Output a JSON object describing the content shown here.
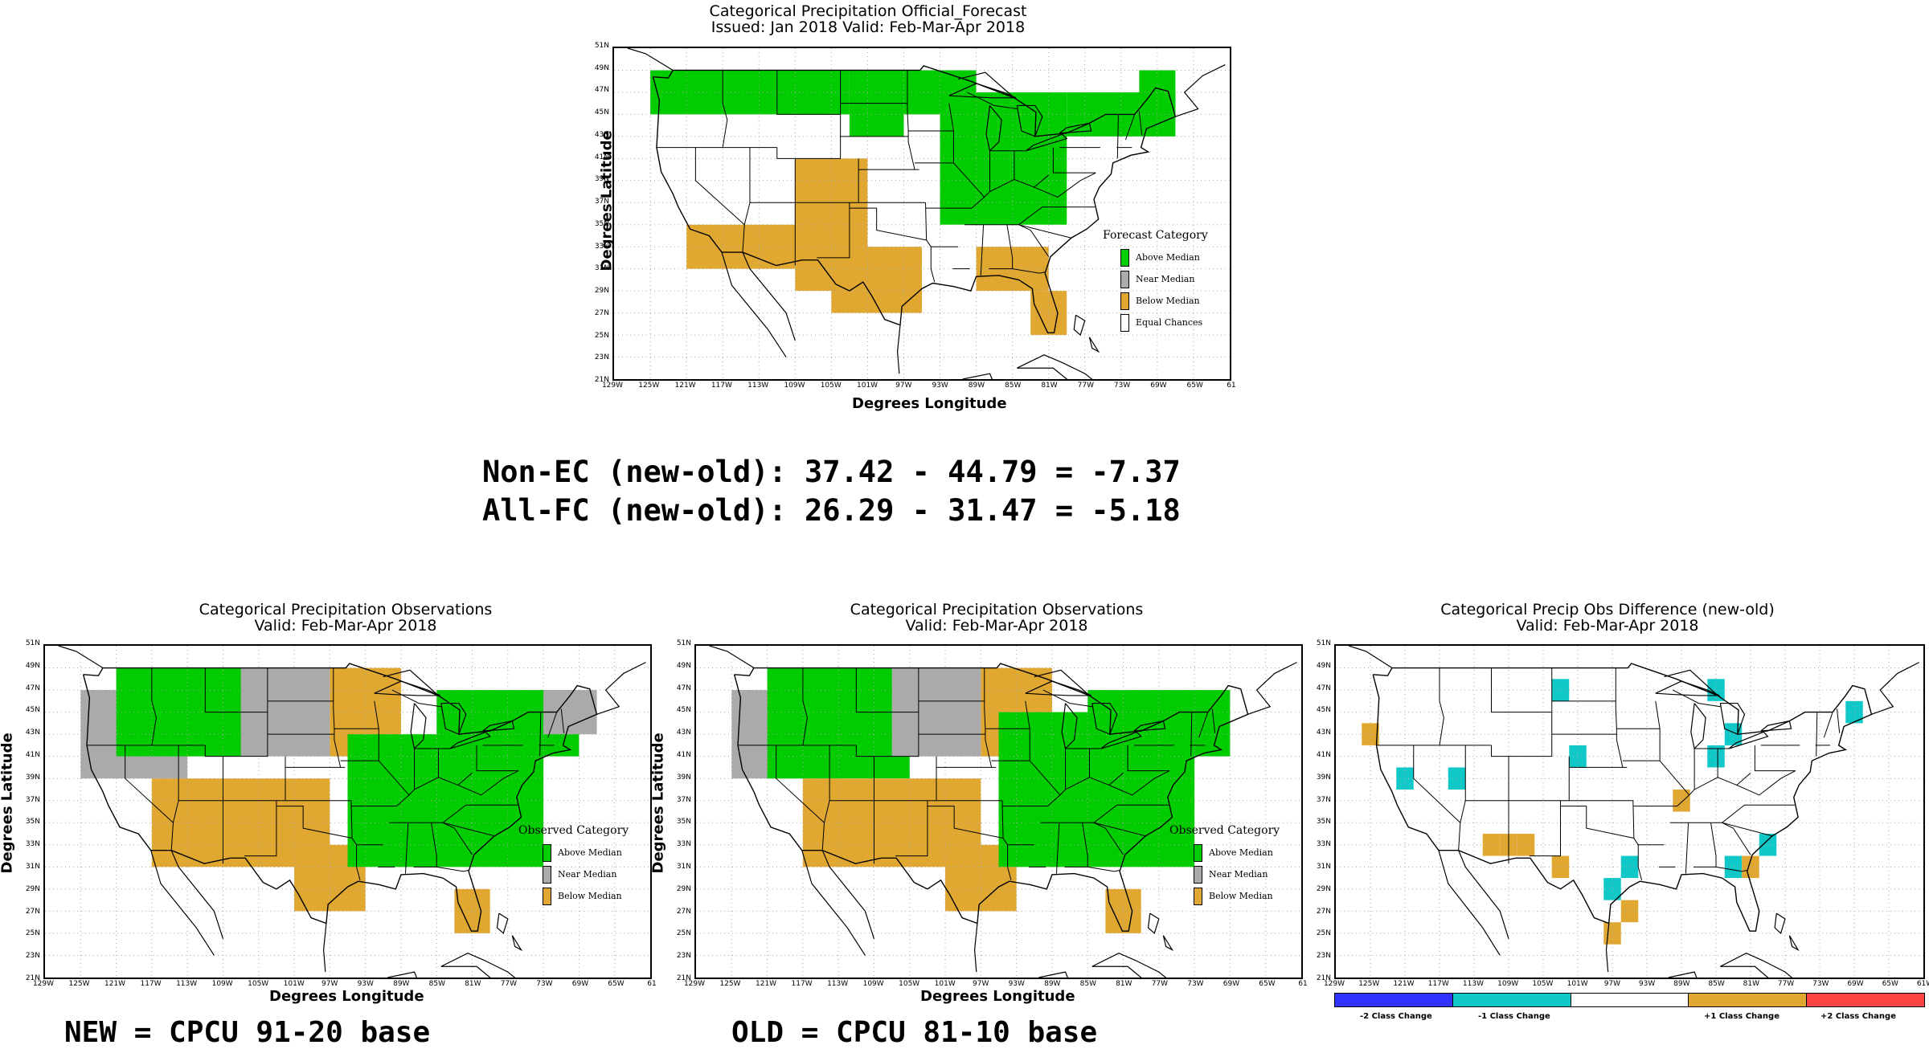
{
  "colors": {
    "above": "#00cc00",
    "near": "#aaaaaa",
    "below": "#e0a830",
    "ec": "#ffffff",
    "minus2": "#3333ff",
    "minus1": "#10c8c8",
    "plus1": "#e0a830",
    "plus2": "#ff4444"
  },
  "lat_ticks": [
    "51N",
    "49N",
    "47N",
    "45N",
    "43N",
    "41N",
    "39N",
    "37N",
    "35N",
    "33N",
    "31N",
    "29N",
    "27N",
    "25N",
    "23N",
    "21N"
  ],
  "lon_ticks": [
    "129W",
    "125W",
    "121W",
    "117W",
    "113W",
    "109W",
    "105W",
    "101W",
    "97W",
    "93W",
    "89W",
    "85W",
    "81W",
    "77W",
    "73W",
    "69W",
    "65W",
    "61"
  ],
  "lon_ticks_diff": [
    "129W",
    "125W",
    "121W",
    "117W",
    "113W",
    "109W",
    "105W",
    "101W",
    "97W",
    "93W",
    "89W",
    "85W",
    "81W",
    "77W",
    "73W",
    "69W",
    "65W",
    "61W"
  ],
  "forecast": {
    "title_line1": "Categorical Precipitation Official_Forecast",
    "title_line2": "Issued: Jan 2018 Valid: Feb-Mar-Apr 2018",
    "xlabel": "Degrees Longitude",
    "ylabel": "Degrees Latitude",
    "legend_title": "Forecast Category",
    "legend": [
      "Above Median",
      "Near Median",
      "Below Median",
      "Equal Chances"
    ]
  },
  "scores": {
    "line1": "Non-EC (new-old): 37.42 - 44.79 = -7.37",
    "line2": "All-FC (new-old): 26.29 - 31.47 = -5.18"
  },
  "obs_new": {
    "title_line1": "Categorical Precipitation Observations",
    "title_line2": "Valid: Feb-Mar-Apr 2018",
    "xlabel": "Degrees Longitude",
    "ylabel": "Degrees Latitude",
    "legend_title": "Observed Category",
    "legend": [
      "Above Median",
      "Near Median",
      "Below Median"
    ],
    "caption": "NEW = CPCU 91-20 base"
  },
  "obs_old": {
    "title_line1": "Categorical Precipitation Observations",
    "title_line2": "Valid: Feb-Mar-Apr 2018",
    "xlabel": "Degrees Longitude",
    "ylabel": "Degrees Latitude",
    "legend_title": "Observed Category",
    "legend": [
      "Above Median",
      "Near Median",
      "Below Median"
    ],
    "caption": "OLD = CPCU 81-10 base"
  },
  "obs_diff": {
    "title_line1": "Categorical Precip Obs Difference (new-old)",
    "title_line2": "Valid: Feb-Mar-Apr 2018",
    "colorbar": [
      "-2 Class Change",
      "-1 Class Change",
      "+1 Class Change",
      "+2 Class Change"
    ]
  },
  "chart_data": [
    {
      "type": "heatmap",
      "title": "Categorical Precipitation Official_Forecast",
      "subtitle": "Issued: Jan 2018 Valid: Feb-Mar-Apr 2018",
      "xlabel": "Degrees Longitude",
      "ylabel": "Degrees Latitude",
      "xlim": [
        -129,
        -61
      ],
      "ylim": [
        21,
        51
      ],
      "cell_deg": 2,
      "regions": [
        {
          "category": "above",
          "lon": [
            -125,
            -103
          ],
          "lat": [
            45,
            49
          ]
        },
        {
          "category": "above",
          "lon": [
            -103,
            -97
          ],
          "lat": [
            43,
            49
          ]
        },
        {
          "category": "above",
          "lon": [
            -97,
            -89
          ],
          "lat": [
            45,
            49
          ]
        },
        {
          "category": "above",
          "lon": [
            -93,
            -79
          ],
          "lat": [
            35,
            47
          ]
        },
        {
          "category": "above",
          "lon": [
            -79,
            -67
          ],
          "lat": [
            43,
            47
          ]
        },
        {
          "category": "above",
          "lon": [
            -71,
            -67
          ],
          "lat": [
            45,
            49
          ]
        },
        {
          "category": "below",
          "lon": [
            -121,
            -103
          ],
          "lat": [
            31,
            35
          ]
        },
        {
          "category": "below",
          "lon": [
            -109,
            -101
          ],
          "lat": [
            29,
            41
          ]
        },
        {
          "category": "below",
          "lon": [
            -105,
            -95
          ],
          "lat": [
            27,
            33
          ]
        },
        {
          "category": "below",
          "lon": [
            -89,
            -81
          ],
          "lat": [
            29,
            33
          ]
        },
        {
          "category": "below",
          "lon": [
            -83,
            -79
          ],
          "lat": [
            25,
            29
          ]
        }
      ]
    },
    {
      "type": "heatmap",
      "title": "Categorical Precipitation Observations",
      "subtitle": "Valid: Feb-Mar-Apr 2018",
      "xlabel": "Degrees Longitude",
      "ylabel": "Degrees Latitude",
      "xlim": [
        -129,
        -61
      ],
      "ylim": [
        21,
        51
      ],
      "cell_deg": 2,
      "regions": [
        {
          "category": "near",
          "lon": [
            -125,
            -113
          ],
          "lat": [
            39,
            47
          ]
        },
        {
          "category": "above",
          "lon": [
            -121,
            -105
          ],
          "lat": [
            41,
            49
          ]
        },
        {
          "category": "near",
          "lon": [
            -107,
            -97
          ],
          "lat": [
            41,
            49
          ]
        },
        {
          "category": "below",
          "lon": [
            -97,
            -89
          ],
          "lat": [
            41,
            49
          ]
        },
        {
          "category": "below",
          "lon": [
            -117,
            -97
          ],
          "lat": [
            31,
            39
          ]
        },
        {
          "category": "below",
          "lon": [
            -101,
            -93
          ],
          "lat": [
            27,
            33
          ]
        },
        {
          "category": "above",
          "lon": [
            -95,
            -73
          ],
          "lat": [
            31,
            43
          ]
        },
        {
          "category": "above",
          "lon": [
            -85,
            -69
          ],
          "lat": [
            41,
            47
          ]
        },
        {
          "category": "near",
          "lon": [
            -73,
            -67
          ],
          "lat": [
            43,
            47
          ]
        },
        {
          "category": "below",
          "lon": [
            -83,
            -79
          ],
          "lat": [
            25,
            29
          ]
        }
      ]
    },
    {
      "type": "heatmap",
      "title": "Categorical Precipitation Observations",
      "subtitle": "Valid: Feb-Mar-Apr 2018",
      "xlabel": "Degrees Longitude",
      "ylabel": "Degrees Latitude",
      "xlim": [
        -129,
        -61
      ],
      "ylim": [
        21,
        51
      ],
      "cell_deg": 2,
      "regions": [
        {
          "category": "near",
          "lon": [
            -125,
            -113
          ],
          "lat": [
            39,
            47
          ]
        },
        {
          "category": "above",
          "lon": [
            -121,
            -105
          ],
          "lat": [
            39,
            49
          ]
        },
        {
          "category": "near",
          "lon": [
            -107,
            -97
          ],
          "lat": [
            41,
            49
          ]
        },
        {
          "category": "below",
          "lon": [
            -97,
            -89
          ],
          "lat": [
            41,
            49
          ]
        },
        {
          "category": "below",
          "lon": [
            -117,
            -97
          ],
          "lat": [
            31,
            39
          ]
        },
        {
          "category": "below",
          "lon": [
            -101,
            -93
          ],
          "lat": [
            27,
            33
          ]
        },
        {
          "category": "above",
          "lon": [
            -95,
            -73
          ],
          "lat": [
            31,
            45
          ]
        },
        {
          "category": "above",
          "lon": [
            -85,
            -69
          ],
          "lat": [
            41,
            47
          ]
        },
        {
          "category": "below",
          "lon": [
            -83,
            -79
          ],
          "lat": [
            25,
            29
          ]
        }
      ]
    },
    {
      "type": "heatmap",
      "title": "Categorical Precip Obs Difference (new-old)",
      "subtitle": "Valid: Feb-Mar-Apr 2018",
      "xlim": [
        -129,
        -61
      ],
      "ylim": [
        21,
        51
      ],
      "cell_deg": 2,
      "cells": [
        {
          "lon": -125,
          "lat": 43,
          "change": 1
        },
        {
          "lon": -121,
          "lat": 39,
          "change": -1
        },
        {
          "lon": -115,
          "lat": 39,
          "change": -1
        },
        {
          "lon": -111,
          "lat": 33,
          "change": 1
        },
        {
          "lon": -109,
          "lat": 33,
          "change": 1
        },
        {
          "lon": -107,
          "lat": 33,
          "change": 1
        },
        {
          "lon": -103,
          "lat": 31,
          "change": 1
        },
        {
          "lon": -103,
          "lat": 47,
          "change": -1
        },
        {
          "lon": -101,
          "lat": 41,
          "change": -1
        },
        {
          "lon": -95,
          "lat": 31,
          "change": -1
        },
        {
          "lon": -97,
          "lat": 29,
          "change": -1
        },
        {
          "lon": -95,
          "lat": 27,
          "change": 1
        },
        {
          "lon": -97,
          "lat": 25,
          "change": 1
        },
        {
          "lon": -89,
          "lat": 37,
          "change": 1
        },
        {
          "lon": -85,
          "lat": 47,
          "change": -1
        },
        {
          "lon": -83,
          "lat": 43,
          "change": -1
        },
        {
          "lon": -85,
          "lat": 41,
          "change": -1
        },
        {
          "lon": -79,
          "lat": 33,
          "change": -1
        },
        {
          "lon": -83,
          "lat": 31,
          "change": -1
        },
        {
          "lon": -81,
          "lat": 31,
          "change": 1
        },
        {
          "lon": -69,
          "lat": 45,
          "change": -1
        }
      ]
    }
  ]
}
